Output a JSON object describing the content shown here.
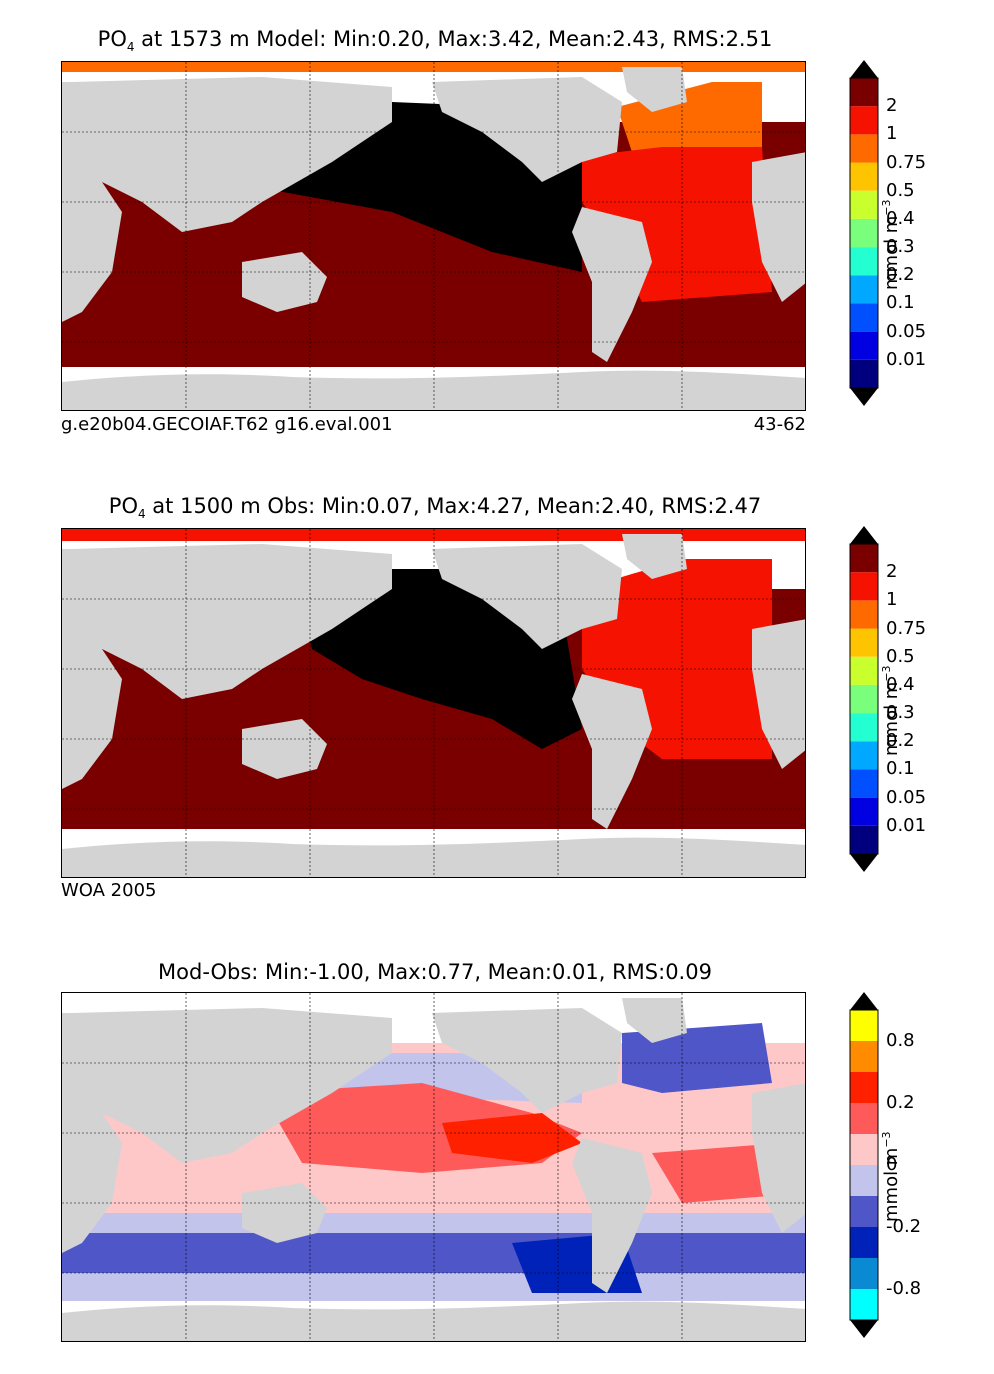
{
  "colors": {
    "land": "#d3d3d3",
    "ice": "#ffffff",
    "black": "#000000",
    "darkred": "#7a0000",
    "red": "#f51200",
    "orange": "#ff6a00"
  },
  "panels": [
    {
      "title_prefix": "PO",
      "title_sub": "4",
      "title_rest": " at 1573 m Model: Min:0.20, Max:3.42, Mean:2.43, RMS:2.51",
      "footer_left": "g.e20b04.GECOIAF.T62 g16.eval.001",
      "footer_right": "43-62",
      "colorbar": {
        "colors": [
          "#00007f",
          "#0000e0",
          "#0050ff",
          "#00a8ff",
          "#24ffd2",
          "#7aff7c",
          "#c9ff2d",
          "#ffc400",
          "#ff6a00",
          "#f51200",
          "#7a0000"
        ],
        "labels": [
          "0.01",
          "0.05",
          "0.1",
          "0.2",
          "0.3",
          "0.4",
          "0.5",
          "0.75",
          "1",
          "2"
        ],
        "unit": "mmol m",
        "unit_sup": "−3"
      }
    },
    {
      "title_prefix": "PO",
      "title_sub": "4",
      "title_rest": " at 1500 m Obs: Min:0.07, Max:4.27, Mean:2.40, RMS:2.47",
      "footer_left": "WOA 2005",
      "footer_right": "",
      "colorbar": {
        "colors": [
          "#00007f",
          "#0000e0",
          "#0050ff",
          "#00a8ff",
          "#24ffd2",
          "#7aff7c",
          "#c9ff2d",
          "#ffc400",
          "#ff6a00",
          "#f51200",
          "#7a0000"
        ],
        "labels": [
          "0.01",
          "0.05",
          "0.1",
          "0.2",
          "0.3",
          "0.4",
          "0.5",
          "0.75",
          "1",
          "2"
        ],
        "unit": "mmol m",
        "unit_sup": "−3"
      }
    },
    {
      "title_prefix": "",
      "title_sub": "",
      "title_rest": "Mod-Obs: Min:-1.00, Max:0.77, Mean:0.01, RMS:0.09",
      "footer_left": "",
      "footer_right": "",
      "colorbar": {
        "colors": [
          "#00ffff",
          "#0a8ad2",
          "#0022b8",
          "#4f56c8",
          "#c2c4ec",
          "#ffc8c8",
          "#ff5a5a",
          "#ff2000",
          "#ff8c00",
          "#ffff00"
        ],
        "labels": [
          "-0.8",
          "-0.2",
          "0",
          "0.2",
          "0.8"
        ],
        "unit": "mmol m",
        "unit_sup": "−3"
      }
    }
  ]
}
